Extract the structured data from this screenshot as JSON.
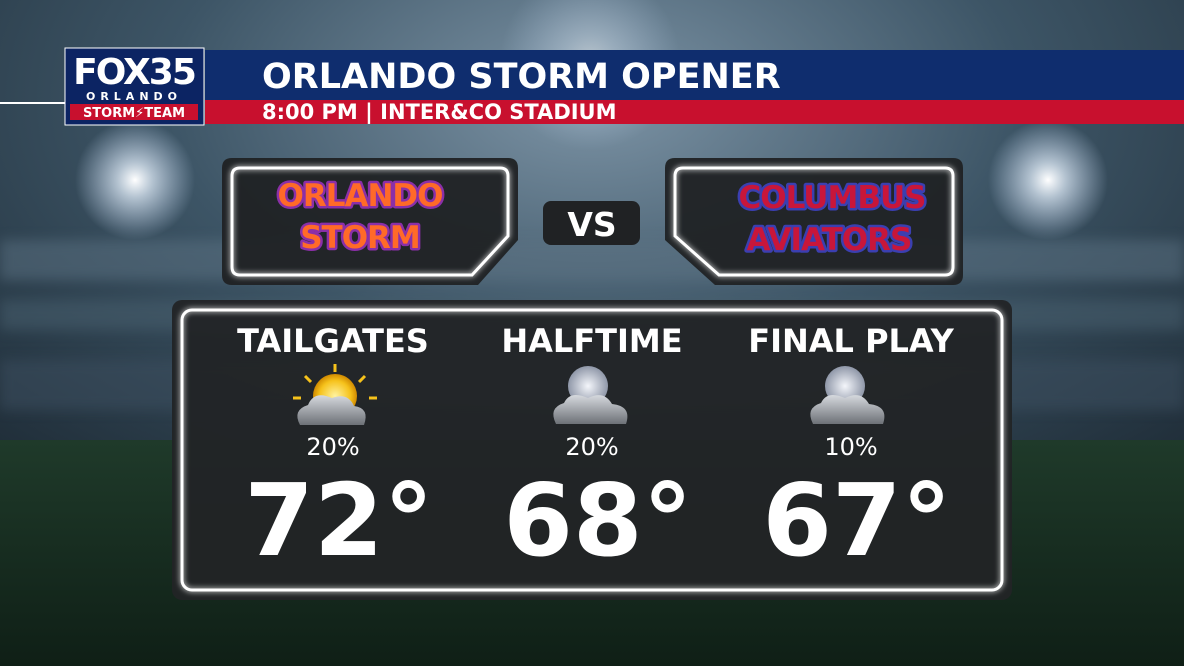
{
  "header": {
    "logo": {
      "brand": "FOX35",
      "city": "ORLANDO",
      "team": "STORM⚡TEAM"
    },
    "title": "ORLANDO STORM OPENER",
    "subtitle": "8:00 PM | INTER&CO STADIUM"
  },
  "matchup": {
    "home": {
      "lines": [
        "ORLANDO",
        "STORM"
      ]
    },
    "separator": "VS",
    "away": {
      "lines": [
        "COLUMBUS",
        "AVIATORS"
      ]
    }
  },
  "periods": [
    {
      "name": "TAILGATES",
      "precip": "20%",
      "temp": "72°"
    },
    {
      "name": "HALFTIME",
      "precip": "20%",
      "temp": "68°"
    },
    {
      "name": "FINAL PLAY",
      "precip": "10%",
      "temp": "67°"
    }
  ]
}
